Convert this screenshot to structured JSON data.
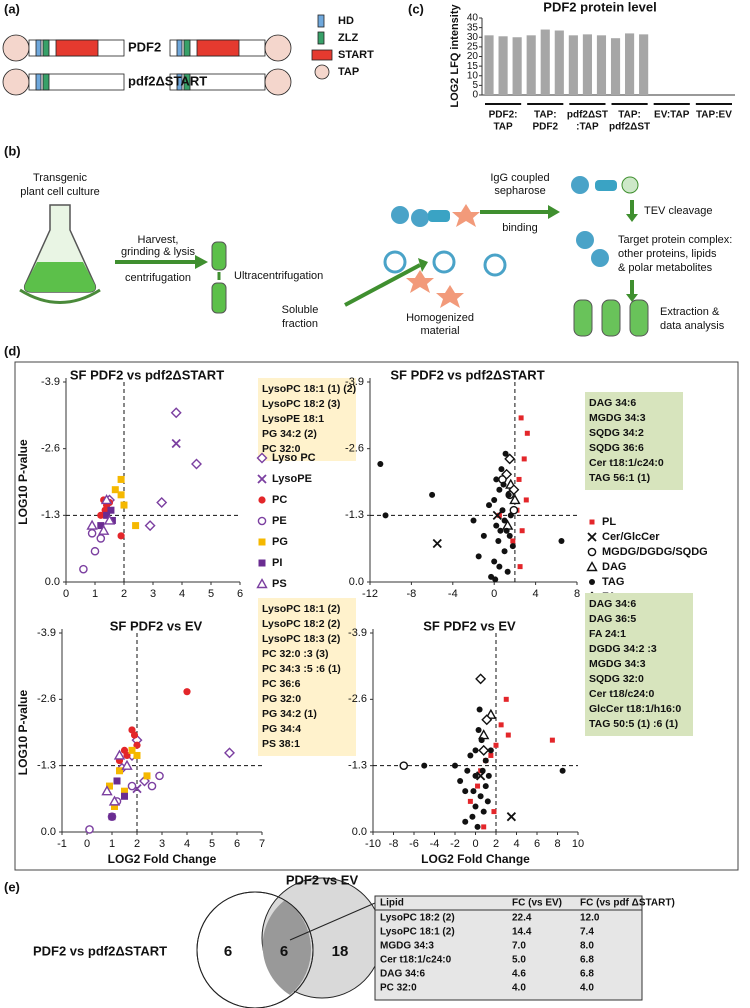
{
  "panels": {
    "a": "(a)",
    "b": "(b)",
    "c": "(c)",
    "d": "(d)",
    "e": "(e)"
  },
  "constructs": {
    "wild": "PDF2",
    "mutant": "pdf2ΔSTART",
    "legend": [
      "HD",
      "ZLZ",
      "START",
      "TAP"
    ]
  },
  "workflow": {
    "culture": [
      "Transgenic",
      "plant cell culture"
    ],
    "harvest": [
      "Harvest,",
      "grinding & lysis",
      "centrifugation"
    ],
    "ultra": "Ultracentrifugation",
    "soluble": [
      "Soluble",
      "fraction"
    ],
    "homog": [
      "Homogenized",
      "material"
    ],
    "igg": [
      "IgG coupled",
      "sepharose",
      "binding"
    ],
    "tev": "TEV cleavage",
    "target": [
      "Target protein complex:",
      "other proteins, lipids",
      "& polar metabolites"
    ],
    "extract": [
      "Extraction &",
      "data analysis"
    ]
  },
  "chart_data": [
    {
      "type": "bar",
      "title": "PDF2 protein level",
      "ylabel": "LOG2 LFQ intensity",
      "color": "#a6a6a6",
      "categories": [
        [
          "PDF2:",
          "TAP"
        ],
        [
          "TAP:",
          "PDF2"
        ],
        [
          "pdf2ΔST",
          ":TAP"
        ],
        [
          "TAP:",
          "pdf2ΔST"
        ],
        [
          "EV:TAP"
        ],
        [
          "TAP:EV"
        ]
      ],
      "values": [
        [
          31,
          30.5,
          30
        ],
        [
          31,
          34,
          33.5
        ],
        [
          31,
          31.5,
          31
        ],
        [
          29.5,
          32,
          31.5
        ],
        [
          null,
          null,
          null
        ],
        [
          null,
          null,
          null
        ]
      ],
      "ylim": [
        0,
        40
      ],
      "yticks": [
        0,
        5,
        10,
        15,
        20,
        25,
        30,
        35,
        40
      ]
    },
    {
      "type": "scatter",
      "title": "SF PDF2 vs pdf2ΔSTART",
      "ylabel": "LOG10 P-value",
      "xlim": [
        0,
        6
      ],
      "ylim": [
        0,
        -3.9
      ],
      "xticks": [
        0,
        1,
        2,
        3,
        4,
        5,
        6
      ],
      "yticks": [
        -3.9,
        -2.6,
        -1.3,
        {
          "value": 0,
          "label": "0.0"
        }
      ],
      "ref_lines": {
        "x": 2,
        "y": -1.3
      },
      "legend": "right",
      "annotation_bg": "#fff2cc",
      "annotations": [
        {
          "text": "LysoPC 18:1 (1) (2)",
          "color": "#7b3fa0"
        },
        {
          "text": "LysoPC 18:2 (3)",
          "color": "#7b3fa0"
        },
        {
          "text": "LysoPE  18:1",
          "color": "#7b3fa0"
        },
        {
          "text": "PG 34:2 (2)",
          "color": "#f5b800"
        },
        {
          "text": "PC 32:0",
          "color": "#e3262a"
        }
      ],
      "series": [
        {
          "name": "Lyso PC",
          "color": "#7b3fa0",
          "marker": "diamond-open",
          "x": [
            3.8,
            4.5,
            3.3,
            2.9,
            1.5
          ],
          "values": [
            -3.3,
            -2.3,
            -1.55,
            -1.1,
            -1.6
          ]
        },
        {
          "name": "LysoPE",
          "color": "#7b3fa0",
          "marker": "x",
          "x": [
            3.8
          ],
          "values": [
            -2.7
          ]
        },
        {
          "name": "PC",
          "color": "#e3262a",
          "marker": "circle",
          "x": [
            1.3,
            1.4,
            1.5,
            1.2,
            1.9,
            1.35
          ],
          "values": [
            -1.6,
            -1.5,
            -1.55,
            -1.3,
            -0.9,
            -1.4
          ]
        },
        {
          "name": "PE",
          "color": "#7b3fa0",
          "marker": "circle-open",
          "x": [
            0.6,
            1.0,
            1.2,
            0.9
          ],
          "values": [
            -0.25,
            -0.6,
            -0.85,
            -0.95
          ]
        },
        {
          "name": "PG",
          "color": "#f5b800",
          "marker": "square",
          "x": [
            1.9,
            1.9,
            2.0,
            2.4,
            1.7
          ],
          "values": [
            -2.0,
            -1.7,
            -1.5,
            -1.1,
            -1.8
          ]
        },
        {
          "name": "PI",
          "color": "#6a2c91",
          "marker": "square",
          "x": [
            1.4,
            1.55,
            1.6,
            1.2
          ],
          "values": [
            -1.3,
            -1.4,
            -1.2,
            -1.1
          ]
        },
        {
          "name": "PS",
          "color": "#7b3fa0",
          "marker": "triangle-open",
          "x": [
            0.9,
            1.3,
            1.5,
            1.4
          ],
          "values": [
            -1.1,
            -1.0,
            -1.2,
            -1.6
          ]
        }
      ]
    },
    {
      "type": "scatter",
      "title": "SF PDF2 vs pdf2ΔSTART",
      "xlim": [
        -12,
        8
      ],
      "ylim": [
        0,
        -3.9
      ],
      "xticks": [
        -12,
        -8,
        -4,
        0,
        4,
        8
      ],
      "yticks": [
        -3.9,
        -2.6,
        -1.3,
        {
          "value": 0,
          "label": "0.0"
        }
      ],
      "ref_lines": {
        "x": 2,
        "y": -1.3
      },
      "legend": "right",
      "annotation_bg": "#d7e4bd",
      "annotations": [
        {
          "text": "DAG 34:6",
          "color": "#111111"
        },
        {
          "text": "MGDG 34:3",
          "color": "#111111"
        },
        {
          "text": "SQDG 34:2",
          "color": "#111111"
        },
        {
          "text": "SQDG 36:6",
          "color": "#111111"
        },
        {
          "text": "Cer t18:1/c24:0",
          "color": "#111111"
        },
        {
          "text": "TAG 56:1 (1)",
          "color": "#111111"
        }
      ],
      "series": [
        {
          "name": "PL",
          "color": "#e3262a",
          "marker": "square-small",
          "x": [
            2.6,
            3.2,
            2.9,
            2.4,
            3.1,
            2.2,
            2.7,
            0.5,
            1.8,
            2.5
          ],
          "values": [
            -3.2,
            -2.9,
            -2.4,
            -2.0,
            -1.6,
            -1.4,
            -1.0,
            -1.3,
            -0.8,
            -0.3
          ]
        },
        {
          "name": "Cer/GlcCer",
          "color": "#111111",
          "marker": "x",
          "x": [
            -5.5,
            0.3
          ],
          "values": [
            -0.75,
            -1.3
          ]
        },
        {
          "name": "MGDG/DGDG/SQDG",
          "color": "#111111",
          "marker": "circle-open",
          "x": [
            0.8,
            1.5,
            1.9
          ],
          "values": [
            -2.0,
            -1.7,
            -1.4
          ]
        },
        {
          "name": "DAG",
          "color": "#111111",
          "marker": "triangle-open",
          "x": [
            1.6,
            2.0,
            1.3
          ],
          "values": [
            -1.9,
            -1.6,
            -1.1
          ]
        },
        {
          "name": "TAG",
          "color": "#111111",
          "marker": "dot",
          "x": [
            -11,
            -10.5,
            -6,
            -2,
            -1,
            -0.5,
            0,
            0.2,
            0.5,
            0.8,
            1,
            1.2,
            1.5,
            1.8,
            0,
            0.5,
            1,
            1.3,
            -0.3,
            0.7,
            1.1,
            0.4,
            0.9,
            1.6,
            0.2,
            6.5,
            -1.5,
            1.4,
            0.6,
            0.1
          ],
          "values": [
            -2.3,
            -1.3,
            -1.7,
            -1.2,
            -0.9,
            -1.5,
            -1.6,
            -2.0,
            -1.8,
            -1.4,
            -1.2,
            -1.0,
            -0.9,
            -0.7,
            -0.4,
            -0.3,
            -0.6,
            -0.2,
            -0.1,
            -2.2,
            -2.5,
            -0.8,
            -1.9,
            -1.3,
            -1.1,
            -0.8,
            -0.5,
            -1.7,
            -1.0,
            -0.05
          ]
        },
        {
          "name": "FA",
          "color": "#111111",
          "marker": "diamond-open",
          "x": [
            1.5,
            1.2,
            1.9
          ],
          "values": [
            -2.4,
            -2.1,
            -1.8
          ]
        }
      ]
    },
    {
      "type": "scatter",
      "title": "SF PDF2 vs EV",
      "ylabel": "LOG10 P-value",
      "xlabel": "LOG2 Fold Change",
      "xlim": [
        -1,
        7
      ],
      "ylim": [
        0,
        -3.9
      ],
      "xticks": [
        -1,
        0,
        1,
        2,
        3,
        4,
        5,
        6,
        7
      ],
      "yticks": [
        -3.9,
        -2.6,
        -1.3,
        {
          "value": 0,
          "label": "0.0"
        }
      ],
      "ref_lines": {
        "x": 2,
        "y": -1.3
      },
      "annotation_bg": "#fff2cc",
      "annotations": [
        {
          "text": "LysoPC 18:1 (2)",
          "color": "#7b3fa0"
        },
        {
          "text": "LysoPC 18:2 (2)",
          "color": "#7b3fa0"
        },
        {
          "text": "LysoPC 18:3 (2)",
          "color": "#7b3fa0"
        },
        {
          "text": "PC 32:0 :3 (3)",
          "color": "#e3262a"
        },
        {
          "text": "PC 34:3 :5 :6 (1)",
          "color": "#e3262a"
        },
        {
          "text": "PC 36:6",
          "color": "#e3262a"
        },
        {
          "text": "PG 32:0",
          "color": "#f5b800"
        },
        {
          "text": "PG 34:2 (1)",
          "color": "#f5b800"
        },
        {
          "text": "PG 34:4",
          "color": "#f5b800"
        },
        {
          "text": "PS 38:1",
          "color": "#7b3fa0"
        }
      ],
      "series": [
        {
          "color": "#7b3fa0",
          "marker": "diamond-open",
          "x": [
            5.7,
            2.0,
            1.8,
            1.4,
            2.3
          ],
          "values": [
            -1.55,
            -1.8,
            -1.5,
            -1.25,
            -1.0
          ]
        },
        {
          "color": "#7b3fa0",
          "marker": "x",
          "x": [
            2.0
          ],
          "values": [
            -0.85
          ]
        },
        {
          "color": "#e3262a",
          "marker": "circle",
          "x": [
            4.0,
            1.8,
            1.9,
            2.0,
            1.5,
            1.6,
            1.3
          ],
          "values": [
            -2.75,
            -2.0,
            -1.9,
            -1.7,
            -1.6,
            -1.5,
            -1.4
          ]
        },
        {
          "color": "#7b3fa0",
          "marker": "circle-open",
          "x": [
            2.9,
            1.8,
            2.6,
            0.1,
            1.2,
            1.0
          ],
          "values": [
            -1.1,
            -0.9,
            -0.9,
            -0.05,
            -0.6,
            -0.3
          ]
        },
        {
          "color": "#f5b800",
          "marker": "square",
          "x": [
            1.8,
            1.3,
            2.4,
            0.9,
            1.1,
            2.0,
            1.5
          ],
          "values": [
            -1.6,
            -1.2,
            -1.1,
            -0.9,
            -0.5,
            -1.5,
            -0.8
          ]
        },
        {
          "color": "#6a2c91",
          "marker": "square",
          "x": [
            1.2,
            1.5,
            1.0
          ],
          "values": [
            -1.0,
            -0.7,
            -0.3
          ]
        },
        {
          "color": "#7b3fa0",
          "marker": "triangle-open",
          "x": [
            1.3,
            1.6,
            0.8,
            1.1
          ],
          "values": [
            -1.5,
            -1.3,
            -0.8,
            -0.6
          ]
        }
      ]
    },
    {
      "type": "scatter",
      "title": "SF PDF2 vs EV",
      "xlabel": "LOG2 Fold Change",
      "xlim": [
        -10,
        10
      ],
      "ylim": [
        0,
        -3.9
      ],
      "xticks": [
        -10,
        -8,
        -6,
        -4,
        -2,
        0,
        2,
        4,
        6,
        8,
        10
      ],
      "yticks": [
        -3.9,
        -2.6,
        -1.3,
        {
          "value": 0,
          "label": "0.0"
        }
      ],
      "ref_lines": {
        "x": 2,
        "y": -1.3
      },
      "annotation_bg": "#d7e4bd",
      "annotations": [
        {
          "text": "DAG 34:6",
          "color": "#111111"
        },
        {
          "text": "DAG 36:5",
          "color": "#111111"
        },
        {
          "text": "FA 24:1",
          "color": "#111111"
        },
        {
          "text": "DGDG 34:2  :3",
          "color": "#111111"
        },
        {
          "text": "MGDG 34:3",
          "color": "#111111"
        },
        {
          "text": "SQDG  32:0",
          "color": "#111111"
        },
        {
          "text": "Cer t18/c24:0",
          "color": "#111111"
        },
        {
          "text": "GlcCer t18:1/h16:0",
          "color": "#111111"
        },
        {
          "text": "TAG 50:5 (1) :6 (1)",
          "color": "#111111"
        }
      ],
      "series": [
        {
          "color": "#e3262a",
          "marker": "square-small",
          "x": [
            3,
            2.5,
            3.2,
            1.5,
            1,
            0.5,
            2,
            0.2,
            -0.5,
            1.8,
            0.8,
            7.5
          ],
          "values": [
            -2.6,
            -2.1,
            -1.9,
            -1.5,
            -1.4,
            -1.2,
            -1.7,
            -0.9,
            -0.6,
            -0.4,
            -0.1,
            -1.8
          ]
        },
        {
          "color": "#111111",
          "marker": "x",
          "x": [
            3.5,
            0.5
          ],
          "values": [
            -0.3,
            -1.1
          ]
        },
        {
          "color": "#111111",
          "marker": "circle-open",
          "x": [
            -7
          ],
          "values": [
            -1.3
          ]
        },
        {
          "color": "#111111",
          "marker": "triangle-open",
          "x": [
            1.5,
            0.8
          ],
          "values": [
            -2.3,
            -1.9
          ]
        },
        {
          "color": "#111111",
          "marker": "dot",
          "x": [
            -2,
            -1.5,
            -1,
            -0.5,
            0,
            0.3,
            0.6,
            1,
            1.3,
            0,
            -0.3,
            0.5,
            1,
            -1,
            0.2,
            0.8,
            1.5,
            -0.8,
            0.4,
            8.5,
            -5,
            0,
            0.7,
            1.2,
            -0.2
          ],
          "values": [
            -1.3,
            -1.0,
            -0.8,
            -1.5,
            -1.6,
            -2.0,
            -1.8,
            -1.4,
            -1.1,
            -0.5,
            -0.3,
            -0.7,
            -0.9,
            -0.2,
            -0.1,
            -0.4,
            -1.6,
            -1.2,
            -2.4,
            -1.2,
            -1.3,
            -1.1,
            -1.2,
            -0.6,
            -0.8
          ]
        },
        {
          "color": "#111111",
          "marker": "diamond-open",
          "x": [
            0.5,
            1.1,
            0.8
          ],
          "values": [
            -3.0,
            -2.2,
            -1.6
          ]
        }
      ]
    }
  ],
  "venn": {
    "left_label": "PDF2 vs pdf2ΔSTART",
    "right_label": "PDF2 vs EV",
    "left_only": "6",
    "both": "6",
    "right_only": "18"
  },
  "table": {
    "header": [
      "Lipid",
      "FC (vs EV)",
      "FC (vs pdf ΔSTART)"
    ],
    "rows": [
      {
        "cells": [
          "LysoPC 18:2 (2)",
          "22.4",
          "12.0"
        ],
        "color": "#7b3fa0"
      },
      {
        "cells": [
          "LysoPC 18:1 (2)",
          "14.4",
          "7.4"
        ],
        "color": "#7b3fa0"
      },
      {
        "cells": [
          "MGDG 34:3",
          "7.0",
          "8.0"
        ],
        "color": "#111111"
      },
      {
        "cells": [
          "Cer t18:1/c24:0",
          "5.0",
          "6.8"
        ],
        "color": "#111111"
      },
      {
        "cells": [
          "DAG 34:6",
          "4.6",
          "6.8"
        ],
        "color": "#111111"
      },
      {
        "cells": [
          "PC 32:0",
          "4.0",
          "4.0"
        ],
        "color": "#e3262a"
      }
    ]
  }
}
